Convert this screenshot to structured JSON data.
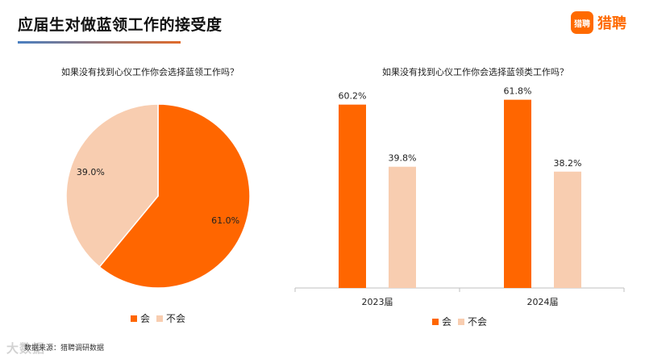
{
  "header": {
    "title": "应届生对做蓝领工作的接受度",
    "logo_badge": "猎聘",
    "logo_text": "猎聘"
  },
  "colors": {
    "accent": "#ff6600",
    "secondary": "#f8cdb0"
  },
  "legend": {
    "yes": "会",
    "no": "不会"
  },
  "footer": {
    "source": "数据来源：猎聘调研数据",
    "watermark": "大数据"
  },
  "chart_data": [
    {
      "type": "pie",
      "title": "如果没有找到心仪工作你会选择蓝领工作吗？",
      "labels": [
        "会",
        "不会"
      ],
      "values": [
        61.0,
        39.0
      ],
      "value_labels": [
        "61.0%",
        "39.0%"
      ],
      "colors": [
        "#ff6600",
        "#f8cdb0"
      ],
      "legend_position": "bottom"
    },
    {
      "type": "bar",
      "title": "如果没有找到心仪工作你会选择蓝领类工作吗？",
      "categories": [
        "2023届",
        "2024届"
      ],
      "series": [
        {
          "name": "会",
          "values": [
            60.2,
            61.8
          ],
          "value_labels": [
            "60.2%",
            "61.8%"
          ],
          "color": "#ff6600"
        },
        {
          "name": "不会",
          "values": [
            39.8,
            38.2
          ],
          "value_labels": [
            "39.8%",
            "38.2%"
          ],
          "color": "#f8cdb0"
        }
      ],
      "ylim": [
        0,
        70
      ],
      "grid": false,
      "legend_position": "bottom"
    }
  ]
}
